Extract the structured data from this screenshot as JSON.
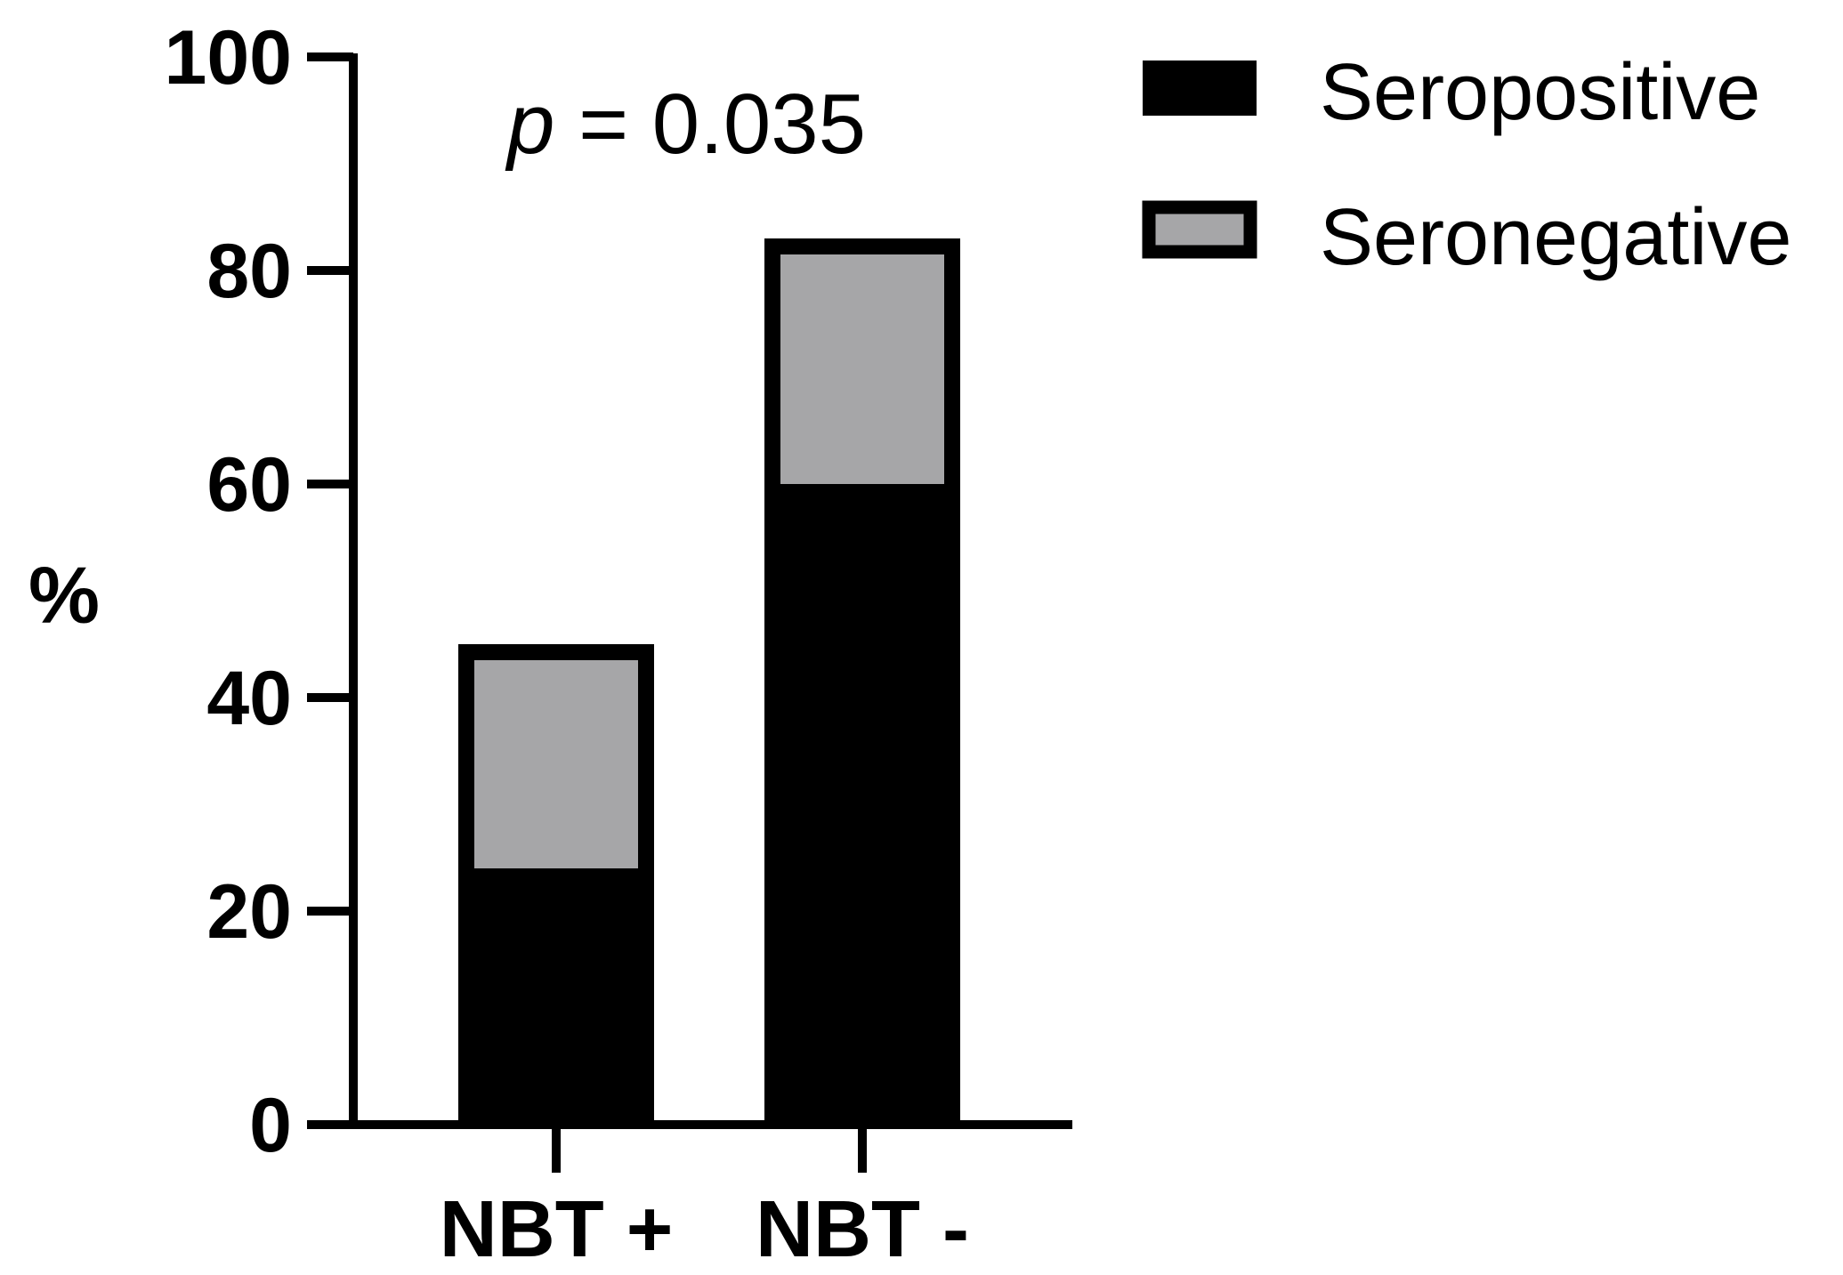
{
  "chart_data": {
    "type": "bar",
    "stacked": true,
    "categories": [
      "NBT +",
      "NBT -"
    ],
    "series": [
      {
        "name": "Seropositive",
        "values": [
          24,
          60
        ],
        "color": "#000000"
      },
      {
        "name": "Seronegative",
        "values": [
          21,
          23
        ],
        "color": "#a6a6a8"
      }
    ],
    "ylabel": "%",
    "xlabel": "",
    "ylim": [
      0,
      100
    ],
    "yticks": [
      0,
      20,
      40,
      60,
      80,
      100
    ],
    "annotation": {
      "prefix": "p",
      "text": " = 0.035"
    },
    "legend_position": "top-right",
    "grid": false
  }
}
